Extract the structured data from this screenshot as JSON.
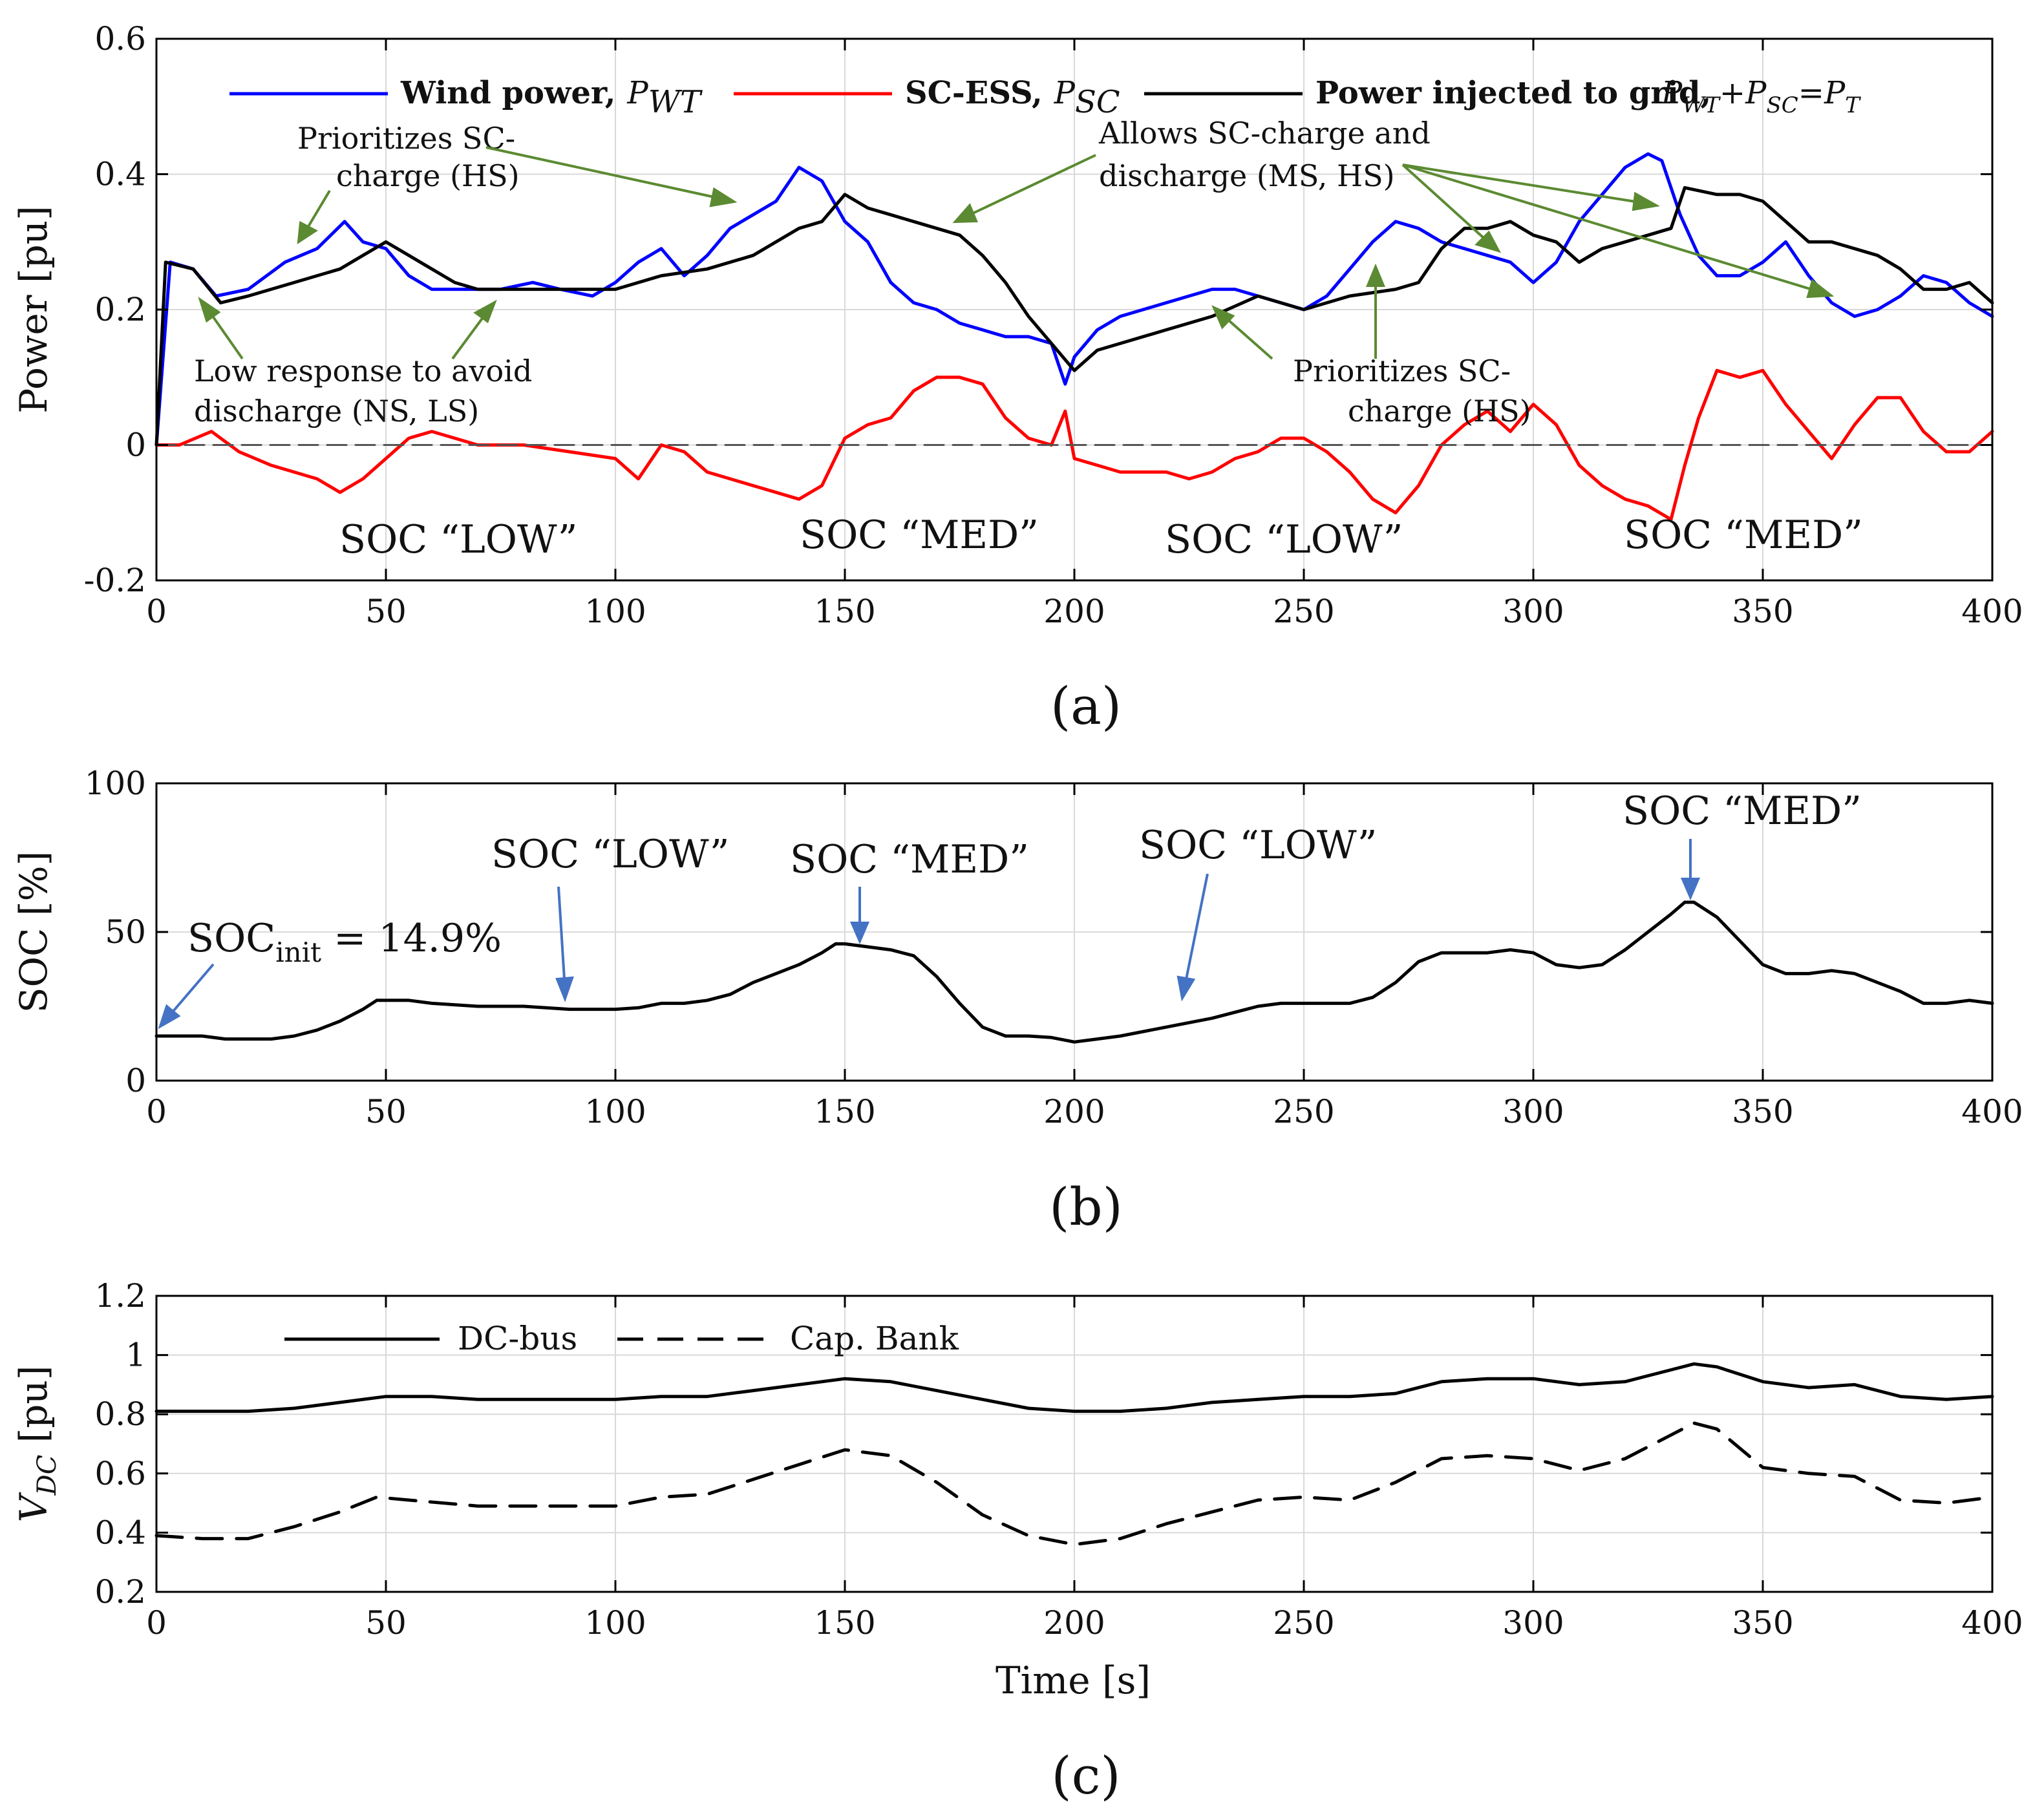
{
  "chart_data": [
    {
      "type": "line",
      "panel": "(a)",
      "caption": "(a)",
      "ylabel": "Power [pu]",
      "xlabel": "",
      "xlim": [
        0,
        400
      ],
      "ylim": [
        -0.2,
        0.6
      ],
      "xticks": [
        0,
        50,
        100,
        150,
        200,
        250,
        300,
        350,
        400
      ],
      "yticks": [
        -0.2,
        0,
        0.2,
        0.4,
        0.6
      ],
      "ytick_labels": [
        "-0.2",
        "0",
        "0.2",
        "0.4",
        "0.6"
      ],
      "grid": true,
      "legend_position": "top",
      "legend": [
        {
          "label": "Wind power,",
          "sym": "P",
          "sub": "WT",
          "color": "#0000ff"
        },
        {
          "label": "SC-ESS,",
          "sym": "P",
          "sub": "SC",
          "color": "#ff0000"
        },
        {
          "label": "Power injected to grid,",
          "formula": "P_WT + P_SC = P_T",
          "color": "#000000"
        }
      ],
      "legend_formula": {
        "p1": "P",
        "s1": "WT",
        "plus": "+",
        "p2": "P",
        "s2": "SC",
        "eq": "=",
        "p3": "P",
        "s3": "T"
      },
      "series": [
        {
          "name": "Wind power P_WT",
          "color": "#0000ff",
          "x": [
            0,
            3,
            8,
            13,
            20,
            28,
            35,
            41,
            45,
            50,
            55,
            60,
            68,
            75,
            82,
            88,
            95,
            100,
            105,
            110,
            115,
            120,
            125,
            130,
            135,
            140,
            145,
            150,
            155,
            160,
            165,
            170,
            175,
            180,
            185,
            190,
            195,
            198,
            200,
            205,
            210,
            215,
            220,
            225,
            230,
            235,
            240,
            245,
            250,
            255,
            260,
            265,
            270,
            275,
            280,
            285,
            290,
            295,
            300,
            305,
            310,
            315,
            320,
            325,
            328,
            332,
            336,
            340,
            345,
            350,
            355,
            360,
            365,
            370,
            375,
            380,
            385,
            390,
            395,
            400
          ],
          "y": [
            0,
            0.27,
            0.26,
            0.22,
            0.23,
            0.27,
            0.29,
            0.33,
            0.3,
            0.29,
            0.25,
            0.23,
            0.23,
            0.23,
            0.24,
            0.23,
            0.22,
            0.24,
            0.27,
            0.29,
            0.25,
            0.28,
            0.32,
            0.34,
            0.36,
            0.41,
            0.39,
            0.33,
            0.3,
            0.24,
            0.21,
            0.2,
            0.18,
            0.17,
            0.16,
            0.16,
            0.15,
            0.09,
            0.13,
            0.17,
            0.19,
            0.2,
            0.21,
            0.22,
            0.23,
            0.23,
            0.22,
            0.21,
            0.2,
            0.22,
            0.26,
            0.3,
            0.33,
            0.32,
            0.3,
            0.29,
            0.28,
            0.27,
            0.24,
            0.27,
            0.33,
            0.37,
            0.41,
            0.43,
            0.42,
            0.34,
            0.28,
            0.25,
            0.25,
            0.27,
            0.3,
            0.25,
            0.21,
            0.19,
            0.2,
            0.22,
            0.25,
            0.24,
            0.21,
            0.19
          ]
        },
        {
          "name": "SC-ESS P_SC",
          "color": "#ff0000",
          "x": [
            0,
            5,
            12,
            18,
            25,
            30,
            35,
            40,
            45,
            50,
            55,
            60,
            65,
            70,
            80,
            90,
            100,
            105,
            110,
            115,
            120,
            125,
            130,
            135,
            140,
            145,
            150,
            155,
            160,
            165,
            170,
            175,
            180,
            185,
            190,
            195,
            198,
            200,
            205,
            210,
            215,
            220,
            225,
            230,
            235,
            240,
            245,
            250,
            255,
            260,
            265,
            270,
            275,
            280,
            285,
            290,
            295,
            300,
            305,
            310,
            315,
            320,
            325,
            330,
            333,
            336,
            340,
            345,
            350,
            355,
            360,
            365,
            370,
            375,
            380,
            385,
            390,
            395,
            400
          ],
          "y": [
            0,
            0,
            0.02,
            -0.01,
            -0.03,
            -0.04,
            -0.05,
            -0.07,
            -0.05,
            -0.02,
            0.01,
            0.02,
            0.01,
            0,
            0,
            -0.01,
            -0.02,
            -0.05,
            0,
            -0.01,
            -0.04,
            -0.05,
            -0.06,
            -0.07,
            -0.08,
            -0.06,
            0.01,
            0.03,
            0.04,
            0.08,
            0.1,
            0.1,
            0.09,
            0.04,
            0.01,
            0,
            0.05,
            -0.02,
            -0.03,
            -0.04,
            -0.04,
            -0.04,
            -0.05,
            -0.04,
            -0.02,
            -0.01,
            0.01,
            0.01,
            -0.01,
            -0.04,
            -0.08,
            -0.1,
            -0.06,
            0,
            0.03,
            0.05,
            0.02,
            0.06,
            0.03,
            -0.03,
            -0.06,
            -0.08,
            -0.09,
            -0.11,
            -0.03,
            0.04,
            0.11,
            0.1,
            0.11,
            0.06,
            0.02,
            -0.02,
            0.03,
            0.07,
            0.07,
            0.02,
            -0.01,
            -0.01,
            0.02
          ]
        },
        {
          "name": "Power injected to grid P_T",
          "color": "#000000",
          "x": [
            0,
            2,
            8,
            14,
            20,
            30,
            40,
            45,
            50,
            55,
            60,
            65,
            70,
            80,
            90,
            100,
            110,
            120,
            130,
            140,
            145,
            150,
            155,
            160,
            165,
            170,
            175,
            180,
            185,
            190,
            195,
            200,
            205,
            210,
            220,
            230,
            240,
            250,
            260,
            270,
            275,
            280,
            285,
            290,
            295,
            300,
            305,
            310,
            315,
            320,
            325,
            330,
            333,
            340,
            345,
            350,
            355,
            360,
            365,
            370,
            375,
            380,
            385,
            390,
            395,
            400
          ],
          "y": [
            0,
            0.27,
            0.26,
            0.21,
            0.22,
            0.24,
            0.26,
            0.28,
            0.3,
            0.28,
            0.26,
            0.24,
            0.23,
            0.23,
            0.23,
            0.23,
            0.25,
            0.26,
            0.28,
            0.32,
            0.33,
            0.37,
            0.35,
            0.34,
            0.33,
            0.32,
            0.31,
            0.28,
            0.24,
            0.19,
            0.15,
            0.11,
            0.14,
            0.15,
            0.17,
            0.19,
            0.22,
            0.2,
            0.22,
            0.23,
            0.24,
            0.29,
            0.32,
            0.32,
            0.33,
            0.31,
            0.3,
            0.27,
            0.29,
            0.3,
            0.31,
            0.32,
            0.38,
            0.37,
            0.37,
            0.36,
            0.33,
            0.3,
            0.3,
            0.29,
            0.28,
            0.26,
            0.23,
            0.23,
            0.24,
            0.21
          ]
        },
        {
          "name": "zero",
          "color": "#555555",
          "dashed": true,
          "x": [
            0,
            400
          ],
          "y": [
            0,
            0
          ]
        }
      ],
      "annotations": [
        {
          "lines": [
            "Prioritizes SC-",
            "charge (HS)"
          ]
        },
        {
          "lines": [
            "Allows SC-charge and",
            "discharge (MS, HS)"
          ]
        },
        {
          "lines": [
            "Low response to avoid",
            "discharge (NS, LS)"
          ]
        },
        {
          "lines": [
            "Prioritizes SC-",
            "charge (HS)"
          ]
        }
      ],
      "soc_labels": [
        "SOC “LOW”",
        "SOC “MED”",
        "SOC “LOW”",
        "SOC “MED”"
      ]
    },
    {
      "type": "line",
      "panel": "(b)",
      "caption": "(b)",
      "ylabel": "SOC [%]",
      "xlabel": "",
      "xlim": [
        0,
        400
      ],
      "ylim": [
        0,
        100
      ],
      "xticks": [
        0,
        50,
        100,
        150,
        200,
        250,
        300,
        350,
        400
      ],
      "yticks": [
        0,
        50,
        100
      ],
      "ytick_labels": [
        "0",
        "50",
        "100"
      ],
      "grid": true,
      "series": [
        {
          "name": "SOC",
          "color": "#000000",
          "x": [
            0,
            5,
            10,
            15,
            20,
            25,
            30,
            35,
            40,
            45,
            48,
            50,
            55,
            60,
            70,
            80,
            90,
            95,
            100,
            105,
            110,
            115,
            120,
            125,
            130,
            135,
            140,
            145,
            148,
            150,
            155,
            160,
            165,
            170,
            175,
            180,
            185,
            190,
            195,
            200,
            205,
            210,
            220,
            230,
            240,
            245,
            250,
            255,
            260,
            265,
            270,
            275,
            280,
            285,
            290,
            295,
            300,
            305,
            310,
            315,
            320,
            325,
            330,
            333,
            335,
            340,
            345,
            350,
            355,
            360,
            365,
            370,
            375,
            380,
            385,
            390,
            395,
            400
          ],
          "y": [
            15,
            15,
            15,
            14,
            14,
            14,
            15,
            17,
            20,
            24,
            27,
            27,
            27,
            26,
            25,
            25,
            24,
            24,
            24,
            24.5,
            26,
            26,
            27,
            29,
            33,
            36,
            39,
            43,
            46,
            46,
            45,
            44,
            42,
            35,
            26,
            18,
            15,
            15,
            14.5,
            13,
            14,
            15,
            18,
            21,
            25,
            26,
            26,
            26,
            26,
            28,
            33,
            40,
            43,
            43,
            43,
            44,
            43,
            39,
            38,
            39,
            44,
            50,
            56,
            60,
            60,
            55,
            47,
            39,
            36,
            36,
            37,
            36,
            33,
            30,
            26,
            26,
            27,
            26
          ]
        }
      ],
      "annotations": [
        {
          "prefix": "SOC",
          "sub": "init",
          "rest": " = 14.9%"
        }
      ],
      "soc_labels": [
        "SOC “LOW”",
        "SOC “MED”",
        "SOC “LOW”",
        "SOC “MED”"
      ]
    },
    {
      "type": "line",
      "panel": "(c)",
      "caption": "(c)",
      "ylabel": "V",
      "ylabel_sub": "DC",
      "ylabel_unit": " [pu]",
      "xlabel": "Time [s]",
      "xlim": [
        0,
        400
      ],
      "ylim": [
        0.2,
        1.2
      ],
      "xticks": [
        0,
        50,
        100,
        150,
        200,
        250,
        300,
        350,
        400
      ],
      "yticks": [
        0.2,
        0.4,
        0.6,
        0.8,
        1.0,
        1.2
      ],
      "ytick_labels": [
        "0.2",
        "0.4",
        "0.6",
        "0.8",
        "1",
        "1.2"
      ],
      "grid": true,
      "legend_position": "top-left",
      "legend": [
        {
          "label": "DC-bus",
          "dashed": false
        },
        {
          "label": "Cap. Bank",
          "dashed": true
        }
      ],
      "series": [
        {
          "name": "DC-bus",
          "color": "#000000",
          "x": [
            0,
            10,
            20,
            30,
            40,
            50,
            60,
            70,
            80,
            90,
            100,
            110,
            120,
            130,
            140,
            150,
            160,
            170,
            180,
            190,
            200,
            210,
            220,
            230,
            240,
            250,
            260,
            270,
            280,
            290,
            300,
            310,
            320,
            330,
            335,
            340,
            350,
            360,
            370,
            380,
            390,
            400
          ],
          "y": [
            0.81,
            0.81,
            0.81,
            0.82,
            0.84,
            0.86,
            0.86,
            0.85,
            0.85,
            0.85,
            0.85,
            0.86,
            0.86,
            0.88,
            0.9,
            0.92,
            0.91,
            0.88,
            0.85,
            0.82,
            0.81,
            0.81,
            0.82,
            0.84,
            0.85,
            0.86,
            0.86,
            0.87,
            0.91,
            0.92,
            0.92,
            0.9,
            0.91,
            0.95,
            0.97,
            0.96,
            0.91,
            0.89,
            0.9,
            0.86,
            0.85,
            0.86
          ]
        },
        {
          "name": "Cap. Bank",
          "color": "#000000",
          "dashed": true,
          "x": [
            0,
            10,
            20,
            30,
            40,
            48,
            55,
            70,
            90,
            100,
            110,
            120,
            130,
            140,
            150,
            160,
            170,
            180,
            190,
            200,
            210,
            220,
            230,
            240,
            250,
            260,
            270,
            280,
            290,
            300,
            310,
            320,
            330,
            335,
            340,
            350,
            360,
            370,
            380,
            390,
            400
          ],
          "y": [
            0.39,
            0.38,
            0.38,
            0.42,
            0.47,
            0.52,
            0.51,
            0.49,
            0.49,
            0.49,
            0.52,
            0.53,
            0.58,
            0.63,
            0.68,
            0.66,
            0.57,
            0.46,
            0.39,
            0.36,
            0.38,
            0.43,
            0.47,
            0.51,
            0.52,
            0.51,
            0.57,
            0.65,
            0.66,
            0.65,
            0.61,
            0.65,
            0.73,
            0.77,
            0.75,
            0.62,
            0.6,
            0.59,
            0.51,
            0.5,
            0.52
          ]
        }
      ]
    }
  ]
}
